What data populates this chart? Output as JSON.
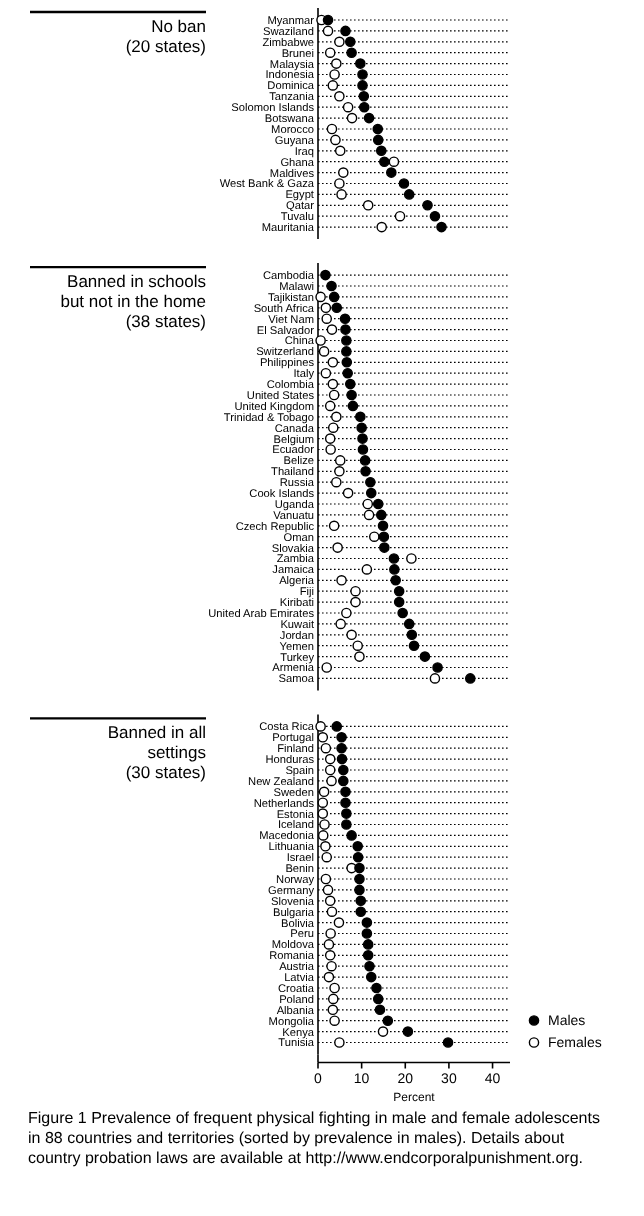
{
  "chart_data": [
    {
      "type": "scatter",
      "orientation": "horizontal",
      "title": "No ban\n(20 states)",
      "categories": [
        "Myanmar",
        "Swaziland",
        "Zimbabwe",
        "Brunei",
        "Malaysia",
        "Indonesia",
        "Dominica",
        "Tanzania",
        "Solomon Islands",
        "Botswana",
        "Morocco",
        "Guyana",
        "Iraq",
        "Ghana",
        "Maldives",
        "West Bank & Gaza",
        "Egypt",
        "Qatar",
        "Tuvalu",
        "Mauritania"
      ],
      "series": [
        {
          "color": "#000000",
          "values": [
            2.3,
            6.3,
            7.4,
            7.7,
            9.7,
            10.2,
            10.2,
            10.5,
            10.6,
            11.7,
            13.7,
            13.8,
            14.5,
            15.2,
            16.8,
            19.7,
            20.9,
            25.1,
            26.8,
            28.3
          ]
        },
        {
          "color": "#ffffff",
          "values": [
            0.8,
            2.3,
            4.9,
            2.8,
            4.2,
            3.8,
            3.4,
            4.9,
            6.9,
            7.8,
            3.2,
            4.0,
            5.1,
            17.4,
            5.8,
            4.9,
            5.4,
            11.5,
            18.8,
            14.6
          ]
        }
      ],
      "xlim": [
        0,
        44
      ],
      "tick_labels": "y",
      "grid": "y",
      "marker": "circle"
    },
    {
      "type": "scatter",
      "orientation": "horizontal",
      "title": "Banned in schools\nbut not in the home\n(38 states)",
      "categories": [
        "Cambodia",
        "Malawi",
        "Tajikistan",
        "South Africa",
        "Viet Nam",
        "El Salvador",
        "China",
        "Switzerland",
        "Philippines",
        "Italy",
        "Colombia",
        "United States",
        "United Kingdom",
        "Trinidad & Tobago",
        "Canada",
        "Belgium",
        "Ecuador",
        "Belize",
        "Thailand",
        "Russia",
        "Cook Islands",
        "Uganda",
        "Vanuatu",
        "Czech Republic",
        "Oman",
        "Slovakia",
        "Zambia",
        "Jamaica",
        "Algeria",
        "Fiji",
        "Kiribati",
        "United Arab Emirates",
        "Kuwait",
        "Jordan",
        "Yemen",
        "Turkey",
        "Armenia",
        "Samoa"
      ],
      "series": [
        {
          "color": "#000000",
          "values": [
            1.7,
            3.1,
            3.7,
            4.3,
            6.2,
            6.3,
            6.5,
            6.5,
            6.6,
            6.8,
            7.4,
            7.7,
            8.0,
            9.7,
            10.0,
            10.2,
            10.3,
            10.8,
            10.9,
            12.0,
            12.2,
            13.8,
            14.5,
            14.9,
            15.1,
            15.2,
            17.4,
            17.5,
            17.8,
            18.6,
            18.6,
            19.4,
            20.9,
            21.5,
            22.0,
            24.5,
            27.4,
            34.9
          ]
        },
        {
          "color": "#ffffff",
          "values": [
            null,
            null,
            0.6,
            1.8,
            2.0,
            3.2,
            0.6,
            1.4,
            3.4,
            1.8,
            3.4,
            3.7,
            2.8,
            4.2,
            3.5,
            2.8,
            2.9,
            5.1,
            4.9,
            4.2,
            6.9,
            11.4,
            11.7,
            3.7,
            12.9,
            4.5,
            21.4,
            11.2,
            5.4,
            8.6,
            8.6,
            6.5,
            5.2,
            7.7,
            9.1,
            9.5,
            2.0,
            26.8
          ]
        }
      ],
      "xlim": [
        0,
        44
      ],
      "tick_labels": "y",
      "grid": "y",
      "marker": "circle"
    },
    {
      "type": "scatter",
      "orientation": "horizontal",
      "title": "Banned in all\nsettings\n(30 states)",
      "xlabel": "Percent",
      "categories": [
        "Costa Rica",
        "Portugal",
        "Finland",
        "Honduras",
        "Spain",
        "New Zealand",
        "Sweden",
        "Netherlands",
        "Estonia",
        "Iceland",
        "Macedonia",
        "Lithuania",
        "Israel",
        "Benin",
        "Norway",
        "Germany",
        "Slovenia",
        "Bulgaria",
        "Bolivia",
        "Peru",
        "Moldova",
        "Romania",
        "Austria",
        "Latvia",
        "Croatia",
        "Poland",
        "Albania",
        "Mongolia",
        "Kenya",
        "Tunisia"
      ],
      "series": [
        {
          "name": "Males",
          "color": "#000000",
          "values": [
            4.3,
            5.4,
            5.4,
            5.5,
            5.8,
            5.8,
            6.3,
            6.3,
            6.5,
            6.5,
            7.7,
            9.1,
            9.2,
            9.5,
            9.5,
            9.5,
            9.8,
            9.8,
            11.2,
            11.2,
            11.5,
            11.5,
            11.8,
            12.2,
            13.4,
            13.8,
            14.2,
            16.0,
            20.6,
            29.8
          ]
        },
        {
          "name": "Females",
          "color": "#ffffff",
          "values": [
            0.6,
            1.1,
            1.8,
            2.8,
            2.8,
            3.1,
            1.4,
            1.1,
            1.1,
            1.5,
            1.2,
            1.7,
            2.0,
            7.7,
            1.8,
            2.3,
            2.8,
            3.2,
            4.8,
            2.9,
            2.5,
            2.8,
            3.1,
            2.5,
            3.8,
            3.5,
            3.4,
            3.8,
            14.9,
            4.9
          ]
        }
      ],
      "xlim": [
        0,
        44
      ],
      "xticks": [
        0,
        10,
        20,
        30,
        40
      ],
      "grid": "y",
      "marker": "circle",
      "legend": "bottom right",
      "annotations": [
        "Figure 1  Prevalence of frequent physical fighting in male and female adolescents in 88 countries and territories (sorted by prevalence in males). Details about country probation laws are available at http://www.endcorporalpunishment.org."
      ]
    }
  ]
}
